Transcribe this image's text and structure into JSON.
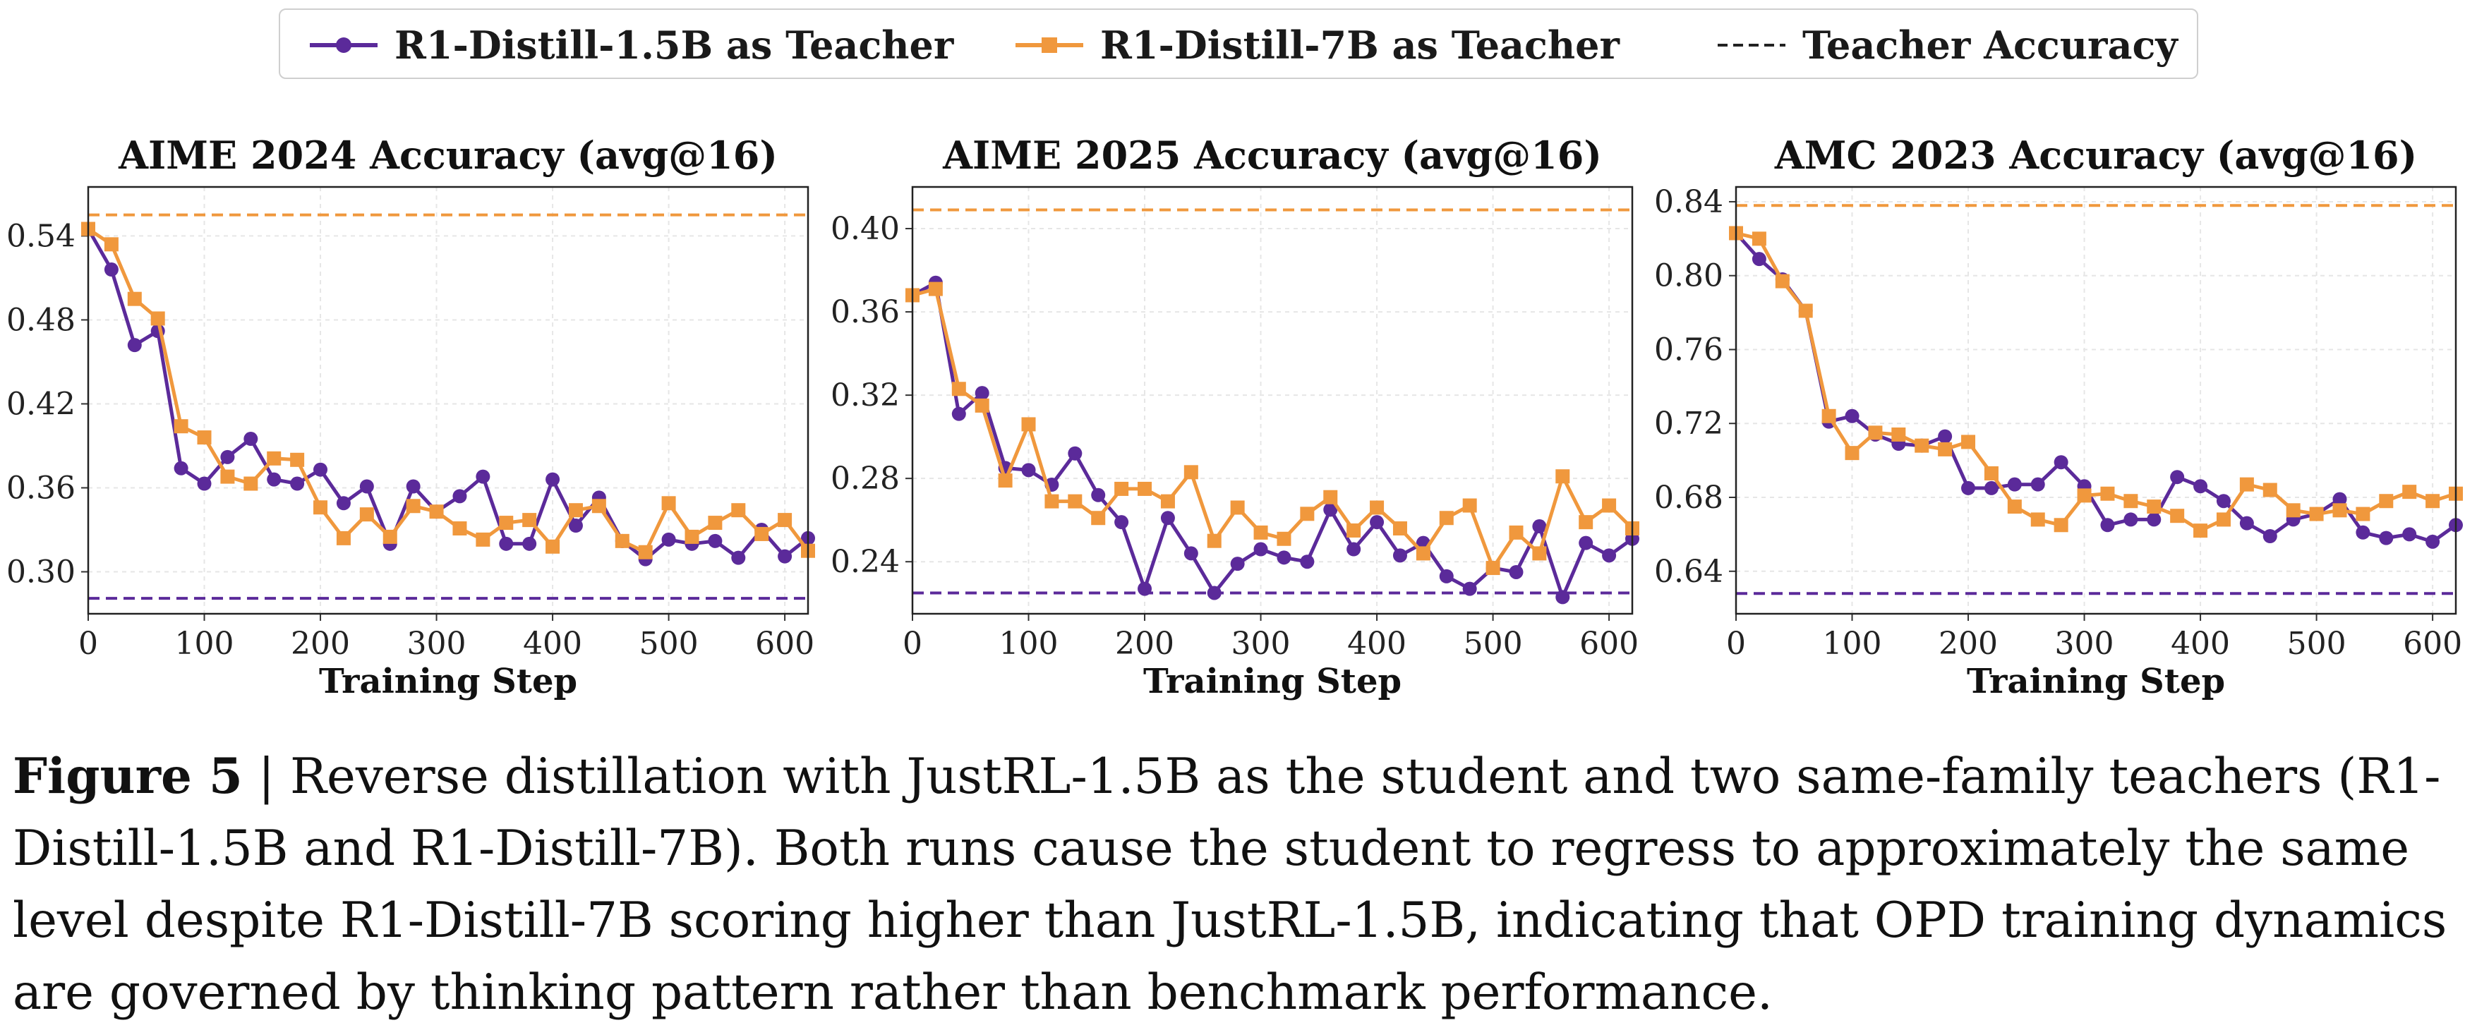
{
  "legend": {
    "items": [
      {
        "label": "R1-Distill-1.5B as Teacher",
        "color": "#5b2a9a",
        "marker": "circle",
        "style": "solid"
      },
      {
        "label": "R1-Distill-7B as Teacher",
        "color": "#f0983d",
        "marker": "square",
        "style": "solid"
      },
      {
        "label": "Teacher Accuracy",
        "color": "#222222",
        "marker": "none",
        "style": "dashed"
      }
    ]
  },
  "caption": {
    "label": "Figure 5",
    "separator": " | ",
    "text": "Reverse distillation with JustRL-1.5B as the student and two same-family teachers (R1-Distill-1.5B and R1-Distill-7B). Both runs cause the student to regress to approximately the same level despite R1-Distill-7B scoring higher than JustRL-1.5B, indicating that OPD training dynamics are governed by thinking pattern rather than benchmark performance."
  },
  "colors": {
    "purple": "#5b2a9a",
    "orange": "#f0983d"
  },
  "chart_data": [
    {
      "type": "line",
      "title": "AIME 2024 Accuracy (avg@16)",
      "xlabel": "Training Step",
      "ylabel": "",
      "xlim": [
        0,
        620
      ],
      "ylim": [
        0.27,
        0.575
      ],
      "xticks": [
        0,
        100,
        200,
        300,
        400,
        500,
        600
      ],
      "yticks": [
        0.3,
        0.36,
        0.42,
        0.48,
        0.54
      ],
      "ytick_labels": [
        "0.30",
        "0.36",
        "0.42",
        "0.48",
        "0.54"
      ],
      "grid": true,
      "x": [
        0,
        20,
        40,
        60,
        80,
        100,
        120,
        140,
        160,
        180,
        200,
        220,
        240,
        260,
        280,
        300,
        320,
        340,
        360,
        380,
        400,
        420,
        440,
        460,
        480,
        500,
        520,
        540,
        560,
        580,
        600,
        620
      ],
      "series": [
        {
          "name": "R1-Distill-1.5B as Teacher",
          "color": "#5b2a9a",
          "marker": "circle",
          "values": [
            0.545,
            0.516,
            0.462,
            0.472,
            0.374,
            0.363,
            0.382,
            0.395,
            0.366,
            0.363,
            0.373,
            0.349,
            0.361,
            0.32,
            0.361,
            0.343,
            0.354,
            0.368,
            0.32,
            0.32,
            0.366,
            0.333,
            0.353,
            0.322,
            0.309,
            0.323,
            0.32,
            0.322,
            0.31,
            0.33,
            0.311,
            0.324
          ]
        },
        {
          "name": "R1-Distill-7B as Teacher",
          "color": "#f0983d",
          "marker": "square",
          "values": [
            0.545,
            0.534,
            0.495,
            0.481,
            0.404,
            0.396,
            0.368,
            0.363,
            0.381,
            0.38,
            0.346,
            0.324,
            0.341,
            0.325,
            0.347,
            0.343,
            0.331,
            0.323,
            0.335,
            0.337,
            0.318,
            0.344,
            0.347,
            0.322,
            0.314,
            0.349,
            0.325,
            0.335,
            0.344,
            0.327,
            0.337,
            0.315
          ]
        }
      ],
      "reference_lines": [
        {
          "name": "Teacher Accuracy",
          "value": 0.555,
          "color": "#f0983d"
        },
        {
          "name": "Teacher Accuracy",
          "value": 0.281,
          "color": "#5b2a9a"
        }
      ]
    },
    {
      "type": "line",
      "title": "AIME 2025 Accuracy (avg@16)",
      "xlabel": "Training Step",
      "ylabel": "",
      "xlim": [
        0,
        620
      ],
      "ylim": [
        0.215,
        0.42
      ],
      "xticks": [
        0,
        100,
        200,
        300,
        400,
        500,
        600
      ],
      "yticks": [
        0.24,
        0.28,
        0.32,
        0.36,
        0.4
      ],
      "ytick_labels": [
        "0.24",
        "0.28",
        "0.32",
        "0.36",
        "0.40"
      ],
      "grid": true,
      "x": [
        0,
        20,
        40,
        60,
        80,
        100,
        120,
        140,
        160,
        180,
        200,
        220,
        240,
        260,
        280,
        300,
        320,
        340,
        360,
        380,
        400,
        420,
        440,
        460,
        480,
        500,
        520,
        540,
        560,
        580,
        600,
        620
      ],
      "series": [
        {
          "name": "R1-Distill-1.5B as Teacher",
          "color": "#5b2a9a",
          "marker": "circle",
          "values": [
            0.368,
            0.374,
            0.311,
            0.321,
            0.285,
            0.284,
            0.277,
            0.292,
            0.272,
            0.259,
            0.227,
            0.261,
            0.244,
            0.225,
            0.239,
            0.246,
            0.242,
            0.24,
            0.265,
            0.246,
            0.259,
            0.243,
            0.249,
            0.233,
            0.227,
            0.237,
            0.235,
            0.257,
            0.223,
            0.249,
            0.243,
            0.251
          ]
        },
        {
          "name": "R1-Distill-7B as Teacher",
          "color": "#f0983d",
          "marker": "square",
          "values": [
            0.368,
            0.371,
            0.323,
            0.315,
            0.279,
            0.306,
            0.269,
            0.269,
            0.261,
            0.275,
            0.275,
            0.269,
            0.283,
            0.25,
            0.266,
            0.254,
            0.251,
            0.263,
            0.271,
            0.255,
            0.266,
            0.256,
            0.244,
            0.261,
            0.267,
            0.237,
            0.254,
            0.244,
            0.281,
            0.259,
            0.267,
            0.256
          ]
        }
      ],
      "reference_lines": [
        {
          "name": "Teacher Accuracy",
          "value": 0.409,
          "color": "#f0983d"
        },
        {
          "name": "Teacher Accuracy",
          "value": 0.225,
          "color": "#5b2a9a"
        }
      ]
    },
    {
      "type": "line",
      "title": "AMC 2023 Accuracy (avg@16)",
      "xlabel": "Training Step",
      "ylabel": "",
      "xlim": [
        0,
        620
      ],
      "ylim": [
        0.617,
        0.848
      ],
      "xticks": [
        0,
        100,
        200,
        300,
        400,
        500,
        600
      ],
      "yticks": [
        0.64,
        0.68,
        0.72,
        0.76,
        0.8,
        0.84
      ],
      "ytick_labels": [
        "0.64",
        "0.68",
        "0.72",
        "0.76",
        "0.80",
        "0.84"
      ],
      "grid": true,
      "x": [
        0,
        20,
        40,
        60,
        80,
        100,
        120,
        140,
        160,
        180,
        200,
        220,
        240,
        260,
        280,
        300,
        320,
        340,
        360,
        380,
        400,
        420,
        440,
        460,
        480,
        500,
        520,
        540,
        560,
        580,
        600,
        620
      ],
      "series": [
        {
          "name": "R1-Distill-1.5B as Teacher",
          "color": "#5b2a9a",
          "marker": "circle",
          "values": [
            0.823,
            0.809,
            0.798,
            0.781,
            0.721,
            0.724,
            0.714,
            0.709,
            0.708,
            0.713,
            0.685,
            0.685,
            0.687,
            0.687,
            0.699,
            0.686,
            0.665,
            0.668,
            0.668,
            0.691,
            0.686,
            0.678,
            0.666,
            0.659,
            0.668,
            0.671,
            0.679,
            0.661,
            0.658,
            0.66,
            0.656,
            0.665
          ]
        },
        {
          "name": "R1-Distill-7B as Teacher",
          "color": "#f0983d",
          "marker": "square",
          "values": [
            0.823,
            0.82,
            0.797,
            0.781,
            0.724,
            0.704,
            0.715,
            0.714,
            0.708,
            0.706,
            0.71,
            0.693,
            0.675,
            0.668,
            0.665,
            0.681,
            0.682,
            0.678,
            0.675,
            0.67,
            0.662,
            0.668,
            0.687,
            0.684,
            0.673,
            0.671,
            0.673,
            0.671,
            0.678,
            0.683,
            0.678,
            0.682
          ]
        }
      ],
      "reference_lines": [
        {
          "name": "Teacher Accuracy",
          "value": 0.838,
          "color": "#f0983d"
        },
        {
          "name": "Teacher Accuracy",
          "value": 0.628,
          "color": "#5b2a9a"
        }
      ]
    }
  ]
}
